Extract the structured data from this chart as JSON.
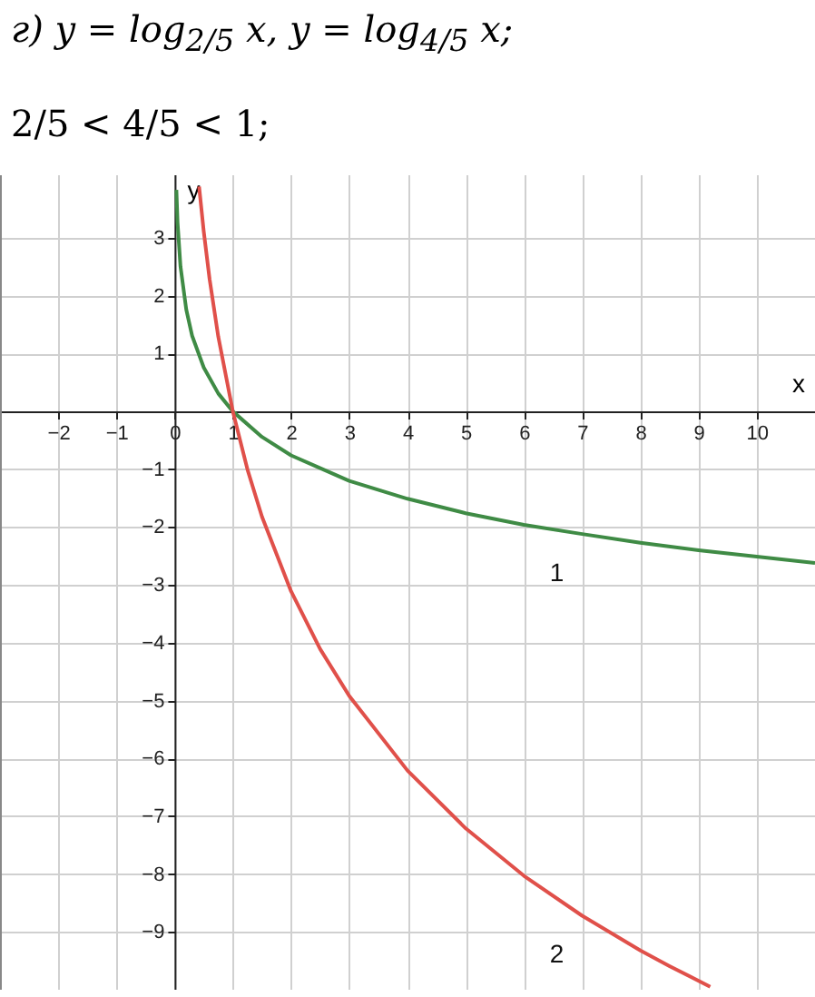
{
  "chart_data": {
    "type": "line",
    "title": "г) y = log$_{2/5}$ x,  y = log$_{4/5}$ x;",
    "subtitle": "2/5 < 4/5 < 1;",
    "xlabel": "x",
    "ylabel": "y",
    "xlim": [
      -3,
      11
    ],
    "ylim": [
      -10,
      4.1
    ],
    "xticks": [
      -2,
      -1,
      0,
      1,
      2,
      3,
      4,
      5,
      6,
      7,
      8,
      9,
      10
    ],
    "yticks": [
      3,
      2,
      1,
      -1,
      -2,
      -3,
      -4,
      -5,
      -6,
      -7,
      -8,
      -9
    ],
    "grid": true,
    "marker": "none",
    "line_style": "solid",
    "series": [
      {
        "color": "#3f8b45",
        "x": [
          0.03,
          0.05,
          0.1,
          0.2,
          0.3,
          0.5,
          0.75,
          1,
          1.5,
          2,
          3,
          4,
          5,
          6,
          7,
          8,
          9,
          10,
          11
        ],
        "values": [
          3.83,
          3.27,
          2.51,
          1.76,
          1.31,
          0.76,
          0.31,
          0,
          -0.44,
          -0.76,
          -1.2,
          -1.51,
          -1.76,
          -1.96,
          -2.12,
          -2.27,
          -2.4,
          -2.51,
          -2.62
        ]
      },
      {
        "color": "#e0504a",
        "x": [
          0.42,
          0.5,
          0.6,
          0.75,
          1,
          1.25,
          1.5,
          2,
          2.5,
          3,
          4,
          5,
          6,
          7,
          8,
          8.5,
          9.2
        ],
        "values": [
          3.89,
          3.11,
          2.29,
          1.29,
          0,
          -1,
          -1.82,
          -3.11,
          -4.11,
          -4.92,
          -6.21,
          -7.21,
          -8.03,
          -8.72,
          -9.32,
          -9.59,
          -9.95
        ]
      }
    ],
    "annotations": [
      "1",
      "2"
    ]
  }
}
